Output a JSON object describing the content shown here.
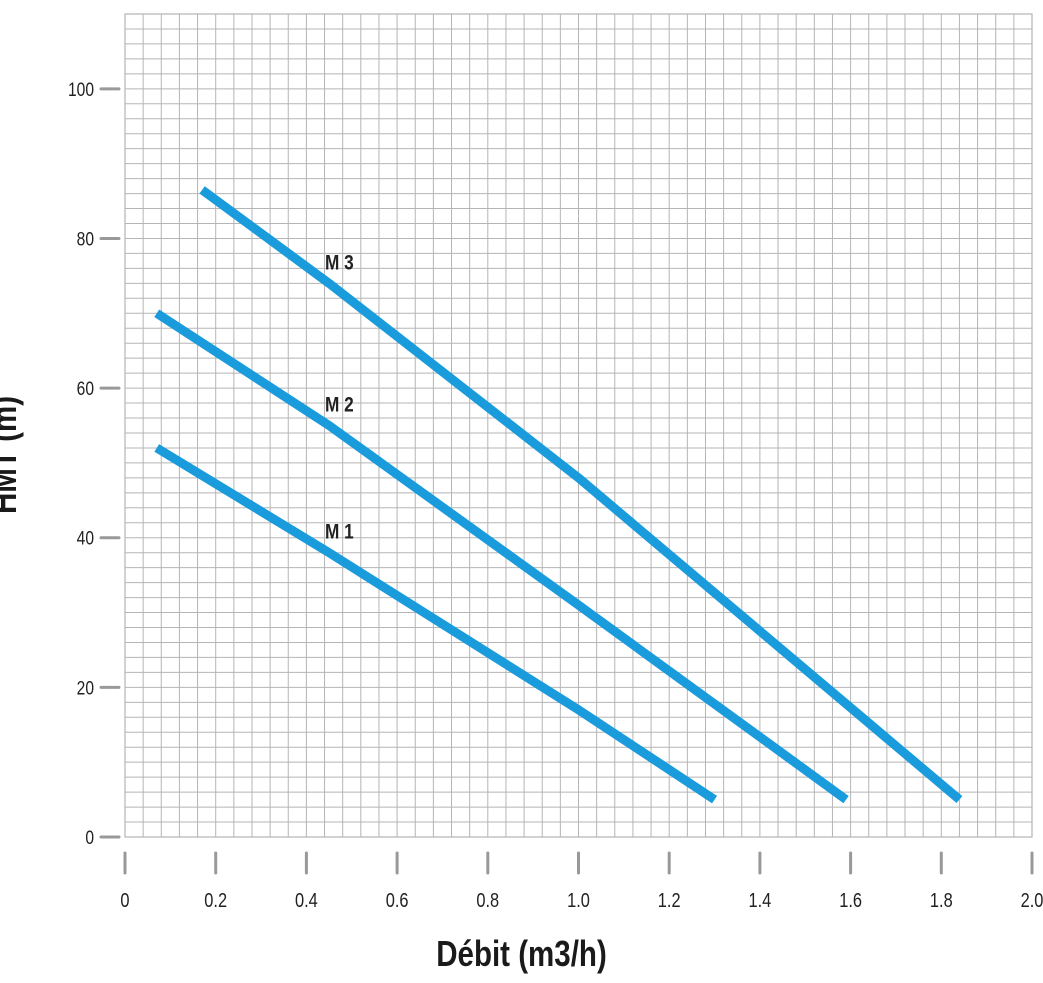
{
  "chart_data": {
    "type": "line",
    "xlabel": "Débit (m3/h)",
    "ylabel": "HMT (m)",
    "xlim": [
      0,
      2.0
    ],
    "ylim": [
      0,
      110
    ],
    "x_ticks": [
      "0",
      "0.2",
      "0.4",
      "0.6",
      "0.8",
      "1.0",
      "1.2",
      "1.4",
      "1.6",
      "1.8",
      "2.0"
    ],
    "y_ticks": [
      "0",
      "20",
      "40",
      "60",
      "80",
      "100"
    ],
    "grid": true,
    "series": [
      {
        "name": "M 1",
        "points": [
          [
            0.07,
            52
          ],
          [
            0.45,
            38
          ],
          [
            1.0,
            17
          ],
          [
            1.3,
            5
          ]
        ]
      },
      {
        "name": "M 2",
        "points": [
          [
            0.07,
            70
          ],
          [
            0.45,
            55
          ],
          [
            1.0,
            31
          ],
          [
            1.59,
            5
          ]
        ]
      },
      {
        "name": "M 3",
        "points": [
          [
            0.17,
            86.5
          ],
          [
            0.45,
            74
          ],
          [
            1.0,
            48
          ],
          [
            1.84,
            5
          ]
        ]
      }
    ],
    "colors": {
      "line": "#1a9bdc",
      "grid": "#b5b5b5",
      "axis": "#999999"
    }
  }
}
